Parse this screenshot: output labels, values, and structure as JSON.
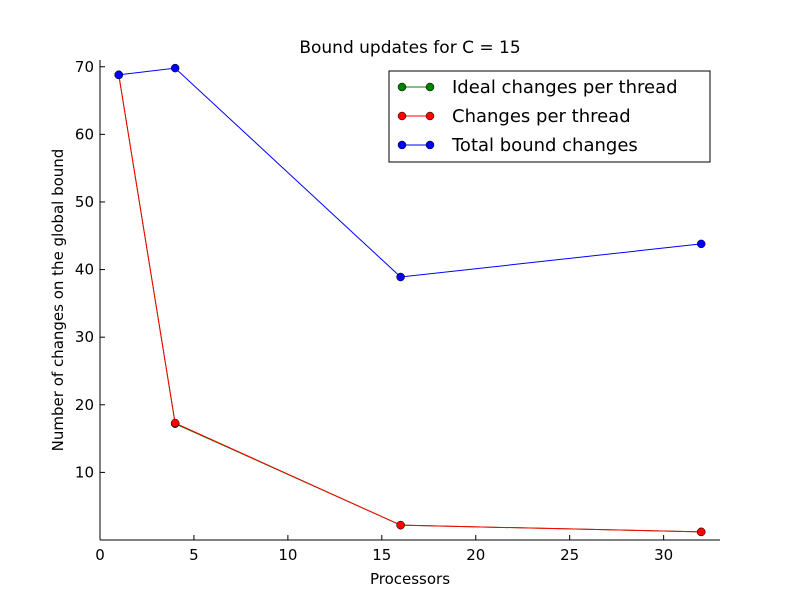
{
  "chart_data": {
    "type": "line",
    "title": "Bound updates for C = 15",
    "xlabel": "Processors",
    "ylabel": "Number of changes on the global bound",
    "xlim": [
      0,
      33
    ],
    "ylim": [
      0,
      71
    ],
    "xticks": [
      0,
      5,
      10,
      15,
      20,
      25,
      30
    ],
    "yticks": [
      10,
      20,
      30,
      40,
      50,
      60,
      70
    ],
    "grid": false,
    "legend_position": "top-right",
    "series": [
      {
        "name": "Ideal changes per thread",
        "color": "#008000",
        "x": [
          1,
          4,
          16,
          32
        ],
        "y": [
          68.8,
          17.2,
          2.2,
          1.2
        ]
      },
      {
        "name": "Changes per thread",
        "color": "#ff0000",
        "x": [
          1,
          4,
          16,
          32
        ],
        "y": [
          68.8,
          17.3,
          2.2,
          1.2
        ]
      },
      {
        "name": "Total bound changes",
        "color": "#0000ff",
        "x": [
          1,
          4,
          16,
          32
        ],
        "y": [
          68.8,
          69.8,
          38.9,
          43.8
        ]
      }
    ]
  }
}
